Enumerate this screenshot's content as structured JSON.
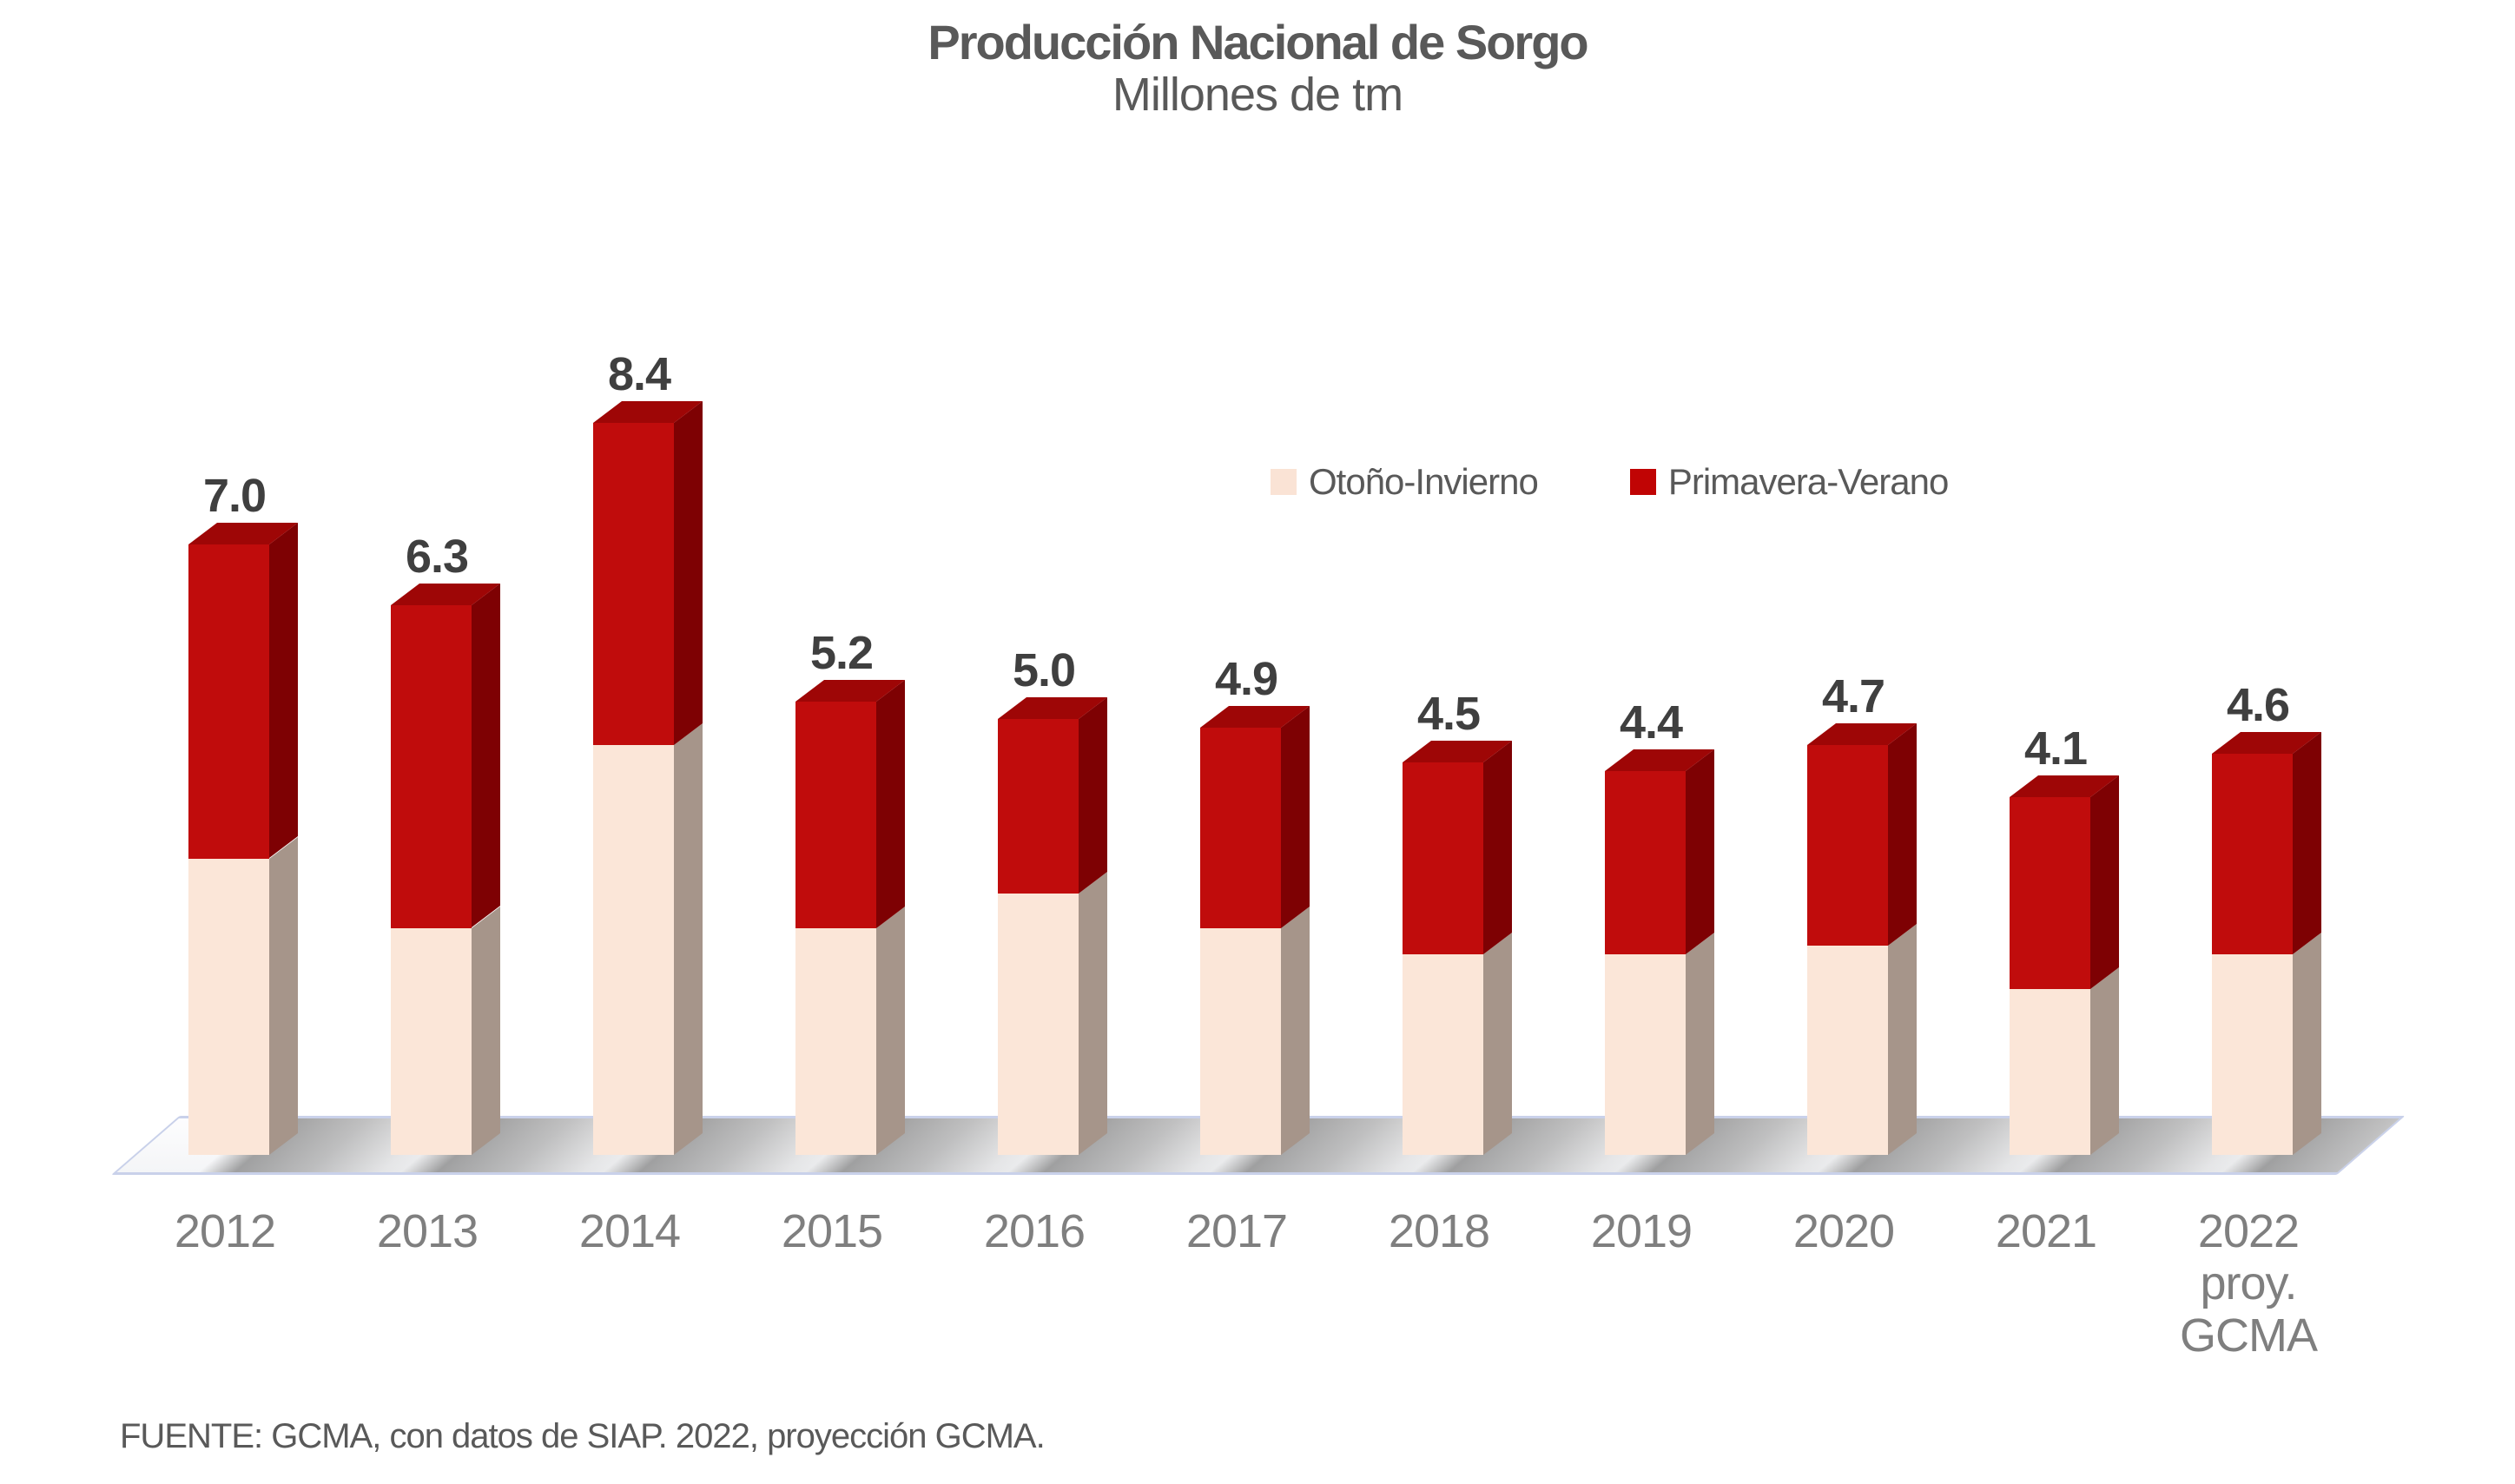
{
  "title": "Producción Nacional de Sorgo",
  "subtitle": "Millones de tm",
  "source": "FUENTE: GCMA, con datos de SIAP. 2022, proyección GCMA.",
  "legend": [
    {
      "label": "Otoño-Invierno",
      "color": "#FAE3D5"
    },
    {
      "label": "Primavera-Verano",
      "color": "#C00404"
    }
  ],
  "colors": {
    "red_front": "#C00C0C",
    "red_side": "#7E0103",
    "red_top": "#9E0606",
    "cream_front": "#FBE6D8",
    "cream_side": "#A6958A",
    "value_label": "#3F3F3F",
    "axis_label": "#7F7F7F",
    "heading": "#595959",
    "floor_border": "#C9D1EA"
  },
  "chart_data": {
    "type": "bar",
    "stacked": true,
    "grid": false,
    "legend_position": "upper-right-inside",
    "ylabel": "Millones de tm",
    "ylim": [
      0,
      8.8
    ],
    "categories": [
      "2012",
      "2013",
      "2014",
      "2015",
      "2016",
      "2017",
      "2018",
      "2019",
      "2020",
      "2021",
      "2022"
    ],
    "xlabels": [
      {
        "label": "2012",
        "sub": ""
      },
      {
        "label": "2013",
        "sub": ""
      },
      {
        "label": "2014",
        "sub": ""
      },
      {
        "label": "2015",
        "sub": ""
      },
      {
        "label": "2016",
        "sub": ""
      },
      {
        "label": "2017",
        "sub": ""
      },
      {
        "label": "2018",
        "sub": ""
      },
      {
        "label": "2019",
        "sub": ""
      },
      {
        "label": "2020",
        "sub": ""
      },
      {
        "label": "2021",
        "sub": ""
      },
      {
        "label": "2022",
        "sub": "proy.\nGCMA"
      }
    ],
    "series": [
      {
        "name": "Otoño-Invierno",
        "color": "#FBE6D8",
        "values": [
          3.4,
          2.6,
          4.7,
          2.6,
          3.0,
          2.6,
          2.3,
          2.3,
          2.4,
          1.9,
          2.3
        ]
      },
      {
        "name": "Primavera-Verano",
        "color": "#C00C0C",
        "values": [
          3.6,
          3.7,
          3.7,
          2.6,
          2.0,
          2.3,
          2.2,
          2.1,
          2.3,
          2.2,
          2.3
        ]
      }
    ],
    "totals": [
      7.0,
      6.3,
      8.4,
      5.2,
      5.0,
      4.9,
      4.5,
      4.4,
      4.7,
      4.1,
      4.6
    ],
    "total_labels": [
      "7.0",
      "6.3",
      "8.4",
      "5.2",
      "5.0",
      "4.9",
      "4.5",
      "4.4",
      "4.7",
      "4.1",
      "4.6"
    ]
  }
}
